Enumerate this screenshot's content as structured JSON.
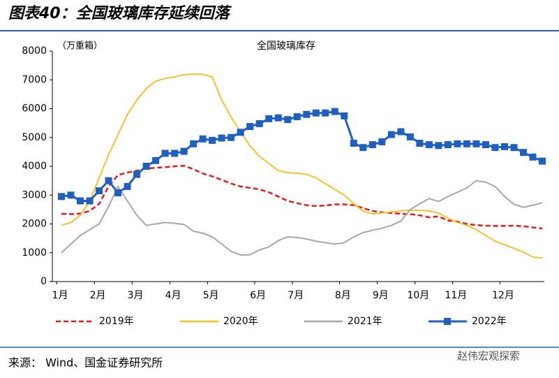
{
  "header": {
    "title": "图表40：全国玻璃库存延续回落"
  },
  "footer": {
    "source": "来源： Wind、国金证券研究所",
    "watermark": "赵伟宏观探索"
  },
  "chart_data": {
    "type": "line",
    "title": "全国玻璃库存",
    "y_label": "（万重箱）",
    "categories": [
      "1月",
      null,
      null,
      null,
      "2月",
      null,
      null,
      null,
      "3月",
      null,
      null,
      null,
      "4月",
      null,
      null,
      null,
      "5月",
      null,
      null,
      null,
      null,
      "6月",
      null,
      null,
      null,
      "7月",
      null,
      null,
      null,
      null,
      "8月",
      null,
      null,
      null,
      "9月",
      null,
      null,
      null,
      "10月",
      null,
      null,
      null,
      "11月",
      null,
      null,
      null,
      null,
      "12月",
      null,
      null,
      null,
      null
    ],
    "ylim": [
      0,
      8000
    ],
    "yticks": [
      0,
      1000,
      2000,
      3000,
      4000,
      5000,
      6000,
      7000,
      8000
    ],
    "series": [
      {
        "name": "2019年",
        "color": "#e31a1c",
        "dash": true,
        "values": [
          2350,
          2340,
          2360,
          2450,
          2700,
          3300,
          3700,
          3780,
          3850,
          3920,
          3950,
          3970,
          4000,
          4020,
          3900,
          3750,
          3650,
          3530,
          3400,
          3300,
          3250,
          3200,
          3100,
          2950,
          2800,
          2720,
          2650,
          2620,
          2640,
          2680,
          2680,
          2650,
          2550,
          2450,
          2400,
          2380,
          2350,
          2340,
          2300,
          2230,
          2260,
          2120,
          2080,
          2000,
          1960,
          1940,
          1930,
          1930,
          1940,
          1920,
          1880,
          1840
        ]
      },
      {
        "name": "2020年",
        "color": "#f2c12e",
        "values": [
          1950,
          2050,
          2300,
          2800,
          3600,
          4400,
          5100,
          5800,
          6300,
          6700,
          6950,
          7050,
          7100,
          7180,
          7200,
          7190,
          7100,
          6300,
          5700,
          5200,
          4700,
          4350,
          4100,
          3850,
          3780,
          3760,
          3720,
          3600,
          3400,
          3200,
          3000,
          2700,
          2450,
          2350,
          2380,
          2420,
          2450,
          2480,
          2470,
          2450,
          2380,
          2200,
          2050,
          1950,
          1800,
          1600,
          1400,
          1280,
          1150,
          1020,
          850,
          820
        ]
      },
      {
        "name": "2021年",
        "color": "#a6a6a6",
        "values": [
          1000,
          1300,
          1600,
          1800,
          2000,
          2600,
          3300,
          2800,
          2300,
          1950,
          2000,
          2050,
          2020,
          1980,
          1750,
          1680,
          1550,
          1300,
          1050,
          920,
          930,
          1100,
          1200,
          1420,
          1550,
          1530,
          1480,
          1400,
          1350,
          1300,
          1350,
          1550,
          1700,
          1780,
          1850,
          1950,
          2100,
          2500,
          2700,
          2880,
          2780,
          2950,
          3100,
          3250,
          3500,
          3450,
          3300,
          2950,
          2680,
          2580,
          2650,
          2730
        ]
      },
      {
        "name": "2022年",
        "color": "#1f5fbf",
        "marker": "square",
        "values": [
          2950,
          3000,
          2800,
          2800,
          3150,
          3500,
          3080,
          3300,
          3720,
          4000,
          4200,
          4450,
          4450,
          4520,
          4780,
          4950,
          4900,
          4980,
          5000,
          5180,
          5380,
          5480,
          5650,
          5680,
          5620,
          5720,
          5800,
          5850,
          5850,
          5900,
          5750,
          4800,
          4650,
          4750,
          4850,
          5100,
          5200,
          5020,
          4800,
          4750,
          4720,
          4750,
          4780,
          4780,
          4780,
          4750,
          4650,
          4680,
          4650,
          4480,
          4320,
          4180
        ]
      }
    ]
  }
}
